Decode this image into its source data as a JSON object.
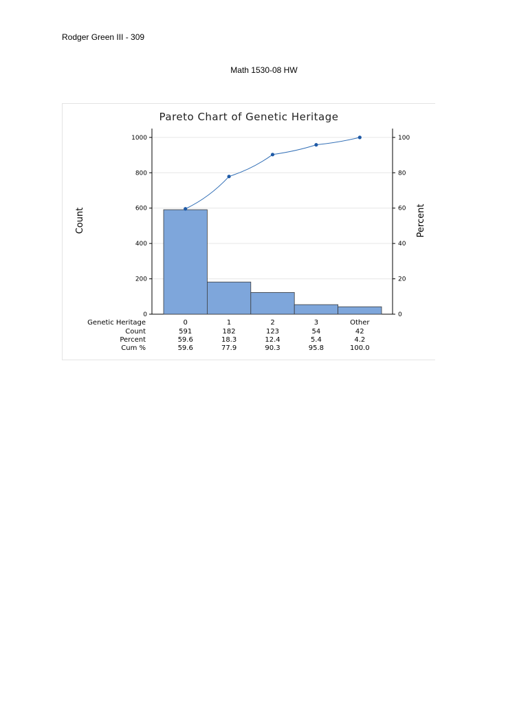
{
  "document": {
    "author_line": "Rodger Green III - 309",
    "title": "Math 1530-08 HW"
  },
  "colors": {
    "bar_fill": "#7ea6db",
    "bar_stroke": "#3a3a3a",
    "line": "#2f6db5",
    "marker": "#1f5aa6",
    "grid": "#e6e6e6"
  },
  "chart_data": {
    "type": "bar",
    "title": "Pareto Chart of Genetic Heritage",
    "ylabel": "Count",
    "y2label": "Percent",
    "categories": [
      "0",
      "1",
      "2",
      "3",
      "Other"
    ],
    "values": [
      591,
      182,
      123,
      54,
      42
    ],
    "cumulative_percent": [
      59.6,
      77.9,
      90.3,
      95.8,
      100.0
    ],
    "ylim": [
      0,
      1000
    ],
    "yticks": [
      0,
      200,
      400,
      600,
      800,
      1000
    ],
    "y2lim": [
      0,
      100
    ],
    "y2ticks": [
      0,
      20,
      40,
      60,
      80,
      100
    ],
    "grid": true,
    "series": [
      {
        "name": "Count",
        "values": [
          591,
          182,
          123,
          54,
          42
        ]
      },
      {
        "name": "Cum %",
        "values": [
          59.6,
          77.9,
          90.3,
          95.8,
          100.0
        ]
      }
    ],
    "table": {
      "row_labels": [
        "Genetic Heritage",
        "Count",
        "Percent",
        "Cum %"
      ],
      "rows": [
        [
          "0",
          "1",
          "2",
          "3",
          "Other"
        ],
        [
          "591",
          "182",
          "123",
          "54",
          "42"
        ],
        [
          "59.6",
          "18.3",
          "12.4",
          "5.4",
          "4.2"
        ],
        [
          "59.6",
          "77.9",
          "90.3",
          "95.8",
          "100.0"
        ]
      ]
    }
  }
}
